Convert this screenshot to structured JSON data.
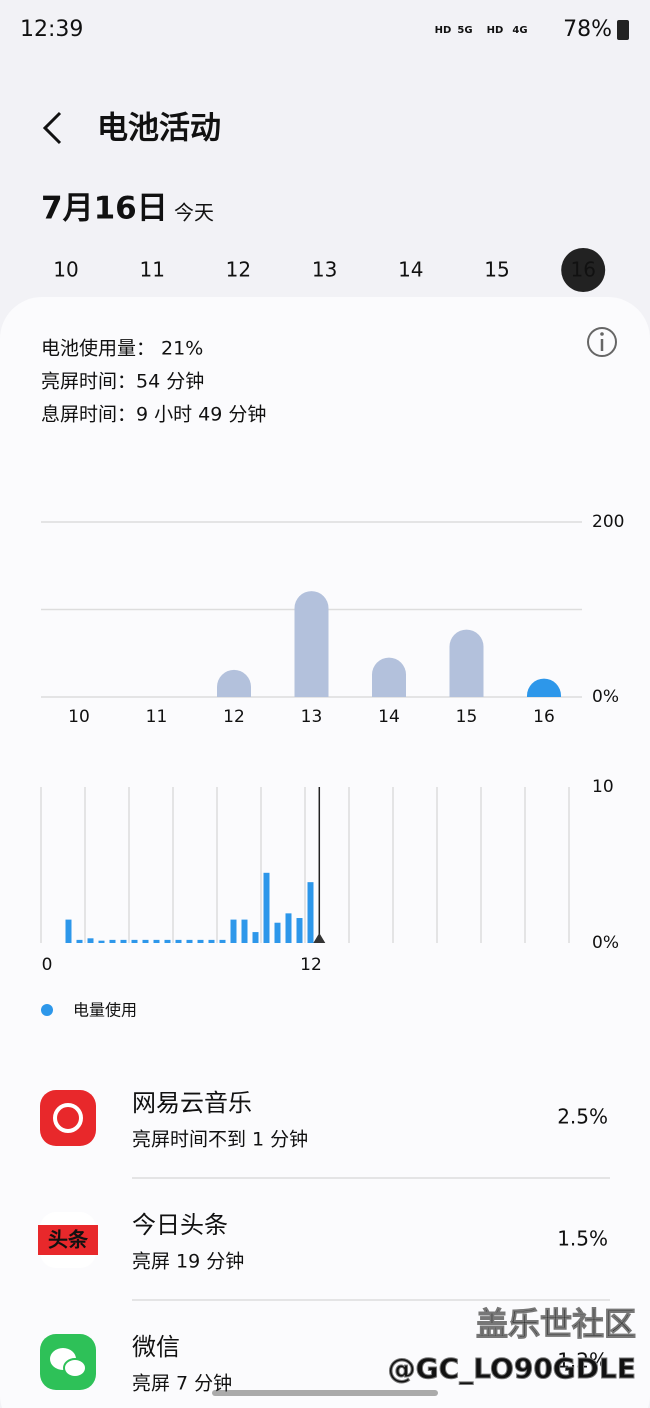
{
  "status_bar": {
    "time": "12:39",
    "icons": [
      "HD",
      "5G",
      "HD",
      "4G"
    ],
    "battery": "78%"
  },
  "header": {
    "title": "电池活动"
  },
  "date": {
    "day": "7月16日",
    "label": "今天"
  },
  "day_tabs": {
    "days": [
      "10",
      "11",
      "12",
      "13",
      "14",
      "15",
      "16"
    ],
    "selected": 6
  },
  "summary": [
    "电池使用量： 21%",
    "亮屏时间：54 分钟",
    "息屏时间：9 小时 49 分钟"
  ],
  "chart_data": [
    {
      "type": "bar",
      "categories": [
        "10",
        "11",
        "12",
        "13",
        "14",
        "15",
        "16"
      ],
      "values": [
        0,
        0,
        31,
        121,
        45,
        77,
        21
      ],
      "colors": [
        "#b3c1dc",
        "#b3c1dc",
        "#b3c1dc",
        "#b3c1dc",
        "#b3c1dc",
        "#b3c1dc",
        "#2d97ea"
      ],
      "ylim": [
        0,
        200
      ],
      "yticks": [
        {
          "value": 0,
          "label": "0%"
        },
        200
      ],
      "minor_gridlines": [
        100
      ],
      "grid": true
    },
    {
      "type": "histogram",
      "x": [
        1,
        1.5,
        2,
        2.5,
        3,
        3.5,
        4,
        4.5,
        5,
        5.5,
        6,
        6.5,
        7,
        7.5,
        8,
        8.5,
        9,
        9.5,
        10,
        10.5,
        11,
        11.5,
        12
      ],
      "values": [
        1.5,
        0.2,
        0.3,
        0.15,
        0.2,
        0.2,
        0.2,
        0.2,
        0.2,
        0.2,
        0.2,
        0.2,
        0.2,
        0.2,
        0.2,
        1.5,
        1.5,
        0.7,
        4.5,
        1.3,
        1.9,
        1.6,
        3.9
      ],
      "color": "#2d97ea",
      "xlim": [
        0,
        24
      ],
      "xticks": [
        0,
        12
      ],
      "xgrid": [
        0,
        2,
        4,
        6,
        8,
        10,
        12,
        14,
        16,
        18,
        20,
        22,
        24
      ],
      "ylim": [
        0,
        10
      ],
      "yticks": [
        {
          "value": 0,
          "label": "0%"
        },
        10
      ],
      "current_time": 12.65,
      "legend": {
        "name": "电量使用",
        "color": "#2d97ea"
      }
    }
  ],
  "apps": [
    {
      "name": "网易云音乐",
      "detail": "亮屏时间不到 1 分钟",
      "percent": "2.5%"
    },
    {
      "name": "今日头条",
      "icon_text": "头条",
      "detail": "亮屏 19 分钟",
      "percent": "1.5%"
    },
    {
      "name": "微信",
      "detail": "亮屏 7 分钟",
      "percent": "1.2%"
    }
  ],
  "watermark": [
    "盖乐世社区",
    "@GC_LO90GDLE"
  ]
}
